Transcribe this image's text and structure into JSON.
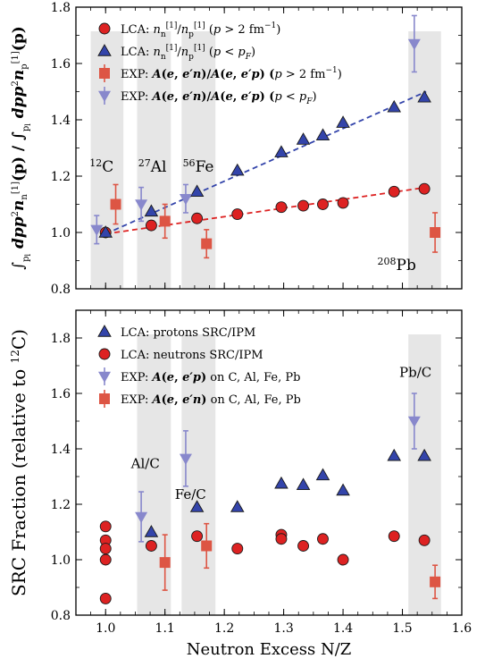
{
  "chart_data": [
    {
      "type": "scatter",
      "panel": "top",
      "ylabel": "∫_{p_l}^{p_h} dp p² n_n^{[1]}(p) / ∫_{p_l}^{p_h} dp p² n_p^{[1]}(p)",
      "ylim": [
        0.8,
        1.8
      ],
      "xlim": [
        0.95,
        1.6
      ],
      "yticks": [
        "0.8",
        "1.0",
        "1.2",
        "1.4",
        "1.6",
        "1.8"
      ],
      "grid": false,
      "legend_position": "upper-left",
      "shaded_bands": [
        {
          "label": "¹²C",
          "x0": 0.975,
          "x1": 1.03
        },
        {
          "label": "²⁷Al",
          "x0": 1.053,
          "x1": 1.11
        },
        {
          "label": "⁵⁶Fe",
          "x0": 1.128,
          "x1": 1.185
        },
        {
          "label": "²⁰⁸Pb",
          "x0": 1.51,
          "x1": 1.565
        }
      ],
      "series": [
        {
          "name": "LCA: n_n^{[1]}/n_p^{[1]} (p > 2 fm⁻¹)",
          "marker": "circle",
          "color": "#dd2222",
          "x": [
            1.0,
            1.077,
            1.154,
            1.222,
            1.296,
            1.333,
            1.366,
            1.4,
            1.486,
            1.537
          ],
          "y": [
            1.0,
            1.025,
            1.05,
            1.065,
            1.09,
            1.095,
            1.1,
            1.105,
            1.145,
            1.155
          ]
        },
        {
          "name": "LCA: n_n^{[1]}/n_p^{[1]} (p < p_F)",
          "marker": "triangle-up",
          "color": "#3344aa",
          "x": [
            1.0,
            1.077,
            1.154,
            1.222,
            1.296,
            1.333,
            1.366,
            1.4,
            1.486,
            1.537
          ],
          "y": [
            1.0,
            1.075,
            1.145,
            1.22,
            1.285,
            1.33,
            1.345,
            1.39,
            1.445,
            1.48
          ]
        },
        {
          "name": "EXP: A(e,e′n)/A(e,e′p) (p > 2 fm⁻¹)",
          "marker": "square",
          "color": "#dd5544",
          "x": [
            1.017,
            1.1,
            1.17,
            1.555
          ],
          "y": [
            1.1,
            1.04,
            0.96,
            1.0
          ],
          "yerr": [
            0.07,
            0.06,
            0.05,
            0.07
          ]
        },
        {
          "name": "EXP: A(e,e′n)/A(e,e′p) (p < p_F)",
          "marker": "triangle-down",
          "color": "#8888cc",
          "x": [
            0.985,
            1.06,
            1.135,
            1.52
          ],
          "y": [
            1.01,
            1.1,
            1.12,
            1.67
          ],
          "yerr": [
            0.05,
            0.06,
            0.05,
            0.1
          ]
        }
      ],
      "fits": [
        {
          "color": "#dd2222",
          "style": "dashed",
          "x": [
            1.0,
            1.54
          ],
          "y": [
            0.995,
            1.16
          ]
        },
        {
          "color": "#3344aa",
          "style": "dashed",
          "x": [
            1.0,
            1.54
          ],
          "y": [
            0.995,
            1.5
          ]
        }
      ]
    },
    {
      "type": "scatter",
      "panel": "bottom",
      "xlabel": "Neutron Excess N/Z",
      "ylabel": "SRC Fraction (relative to ¹²C)",
      "ylim": [
        0.8,
        1.9
      ],
      "xlim": [
        0.95,
        1.6
      ],
      "xticks": [
        "1.0",
        "1.1",
        "1.2",
        "1.3",
        "1.4",
        "1.5",
        "1.6"
      ],
      "yticks": [
        "0.8",
        "1.0",
        "1.2",
        "1.4",
        "1.6",
        "1.8"
      ],
      "grid": false,
      "legend_position": "upper-left",
      "shaded_bands": [
        {
          "label": "Al/C",
          "x0": 1.053,
          "x1": 1.11
        },
        {
          "label": "Fe/C",
          "x0": 1.128,
          "x1": 1.185
        },
        {
          "label": "Pb/C",
          "x0": 1.51,
          "x1": 1.565
        }
      ],
      "series": [
        {
          "name": "LCA: protons SRC/IPM",
          "marker": "triangle-up",
          "color": "#3344aa",
          "x": [
            1.077,
            1.154,
            1.222,
            1.296,
            1.333,
            1.366,
            1.4,
            1.486,
            1.537
          ],
          "y": [
            1.1,
            1.19,
            1.19,
            1.275,
            1.27,
            1.305,
            1.25,
            1.375,
            1.375
          ]
        },
        {
          "name": "LCA: neutrons SRC/IPM",
          "marker": "circle",
          "color": "#dd2222",
          "x": [
            1.0,
            1.0,
            1.0,
            1.0,
            1.0,
            1.077,
            1.154,
            1.222,
            1.296,
            1.296,
            1.333,
            1.366,
            1.4,
            1.486,
            1.537
          ],
          "y": [
            1.12,
            1.07,
            1.04,
            1.0,
            0.86,
            1.05,
            1.085,
            1.04,
            1.09,
            1.075,
            1.05,
            1.075,
            1.0,
            1.085,
            1.07
          ]
        },
        {
          "name": "EXP: A(e,e′p) on C, Al, Fe, Pb",
          "marker": "triangle-down",
          "color": "#8888cc",
          "x": [
            1.06,
            1.135,
            1.52
          ],
          "y": [
            1.155,
            1.365,
            1.5
          ],
          "yerr": [
            0.09,
            0.1,
            0.1
          ]
        },
        {
          "name": "EXP: A(e,e′n) on C, Al, Fe, Pb",
          "marker": "square",
          "color": "#dd5544",
          "x": [
            1.1,
            1.17,
            1.555
          ],
          "y": [
            0.99,
            1.05,
            0.92
          ],
          "yerr": [
            0.1,
            0.08,
            0.06
          ]
        }
      ]
    }
  ]
}
